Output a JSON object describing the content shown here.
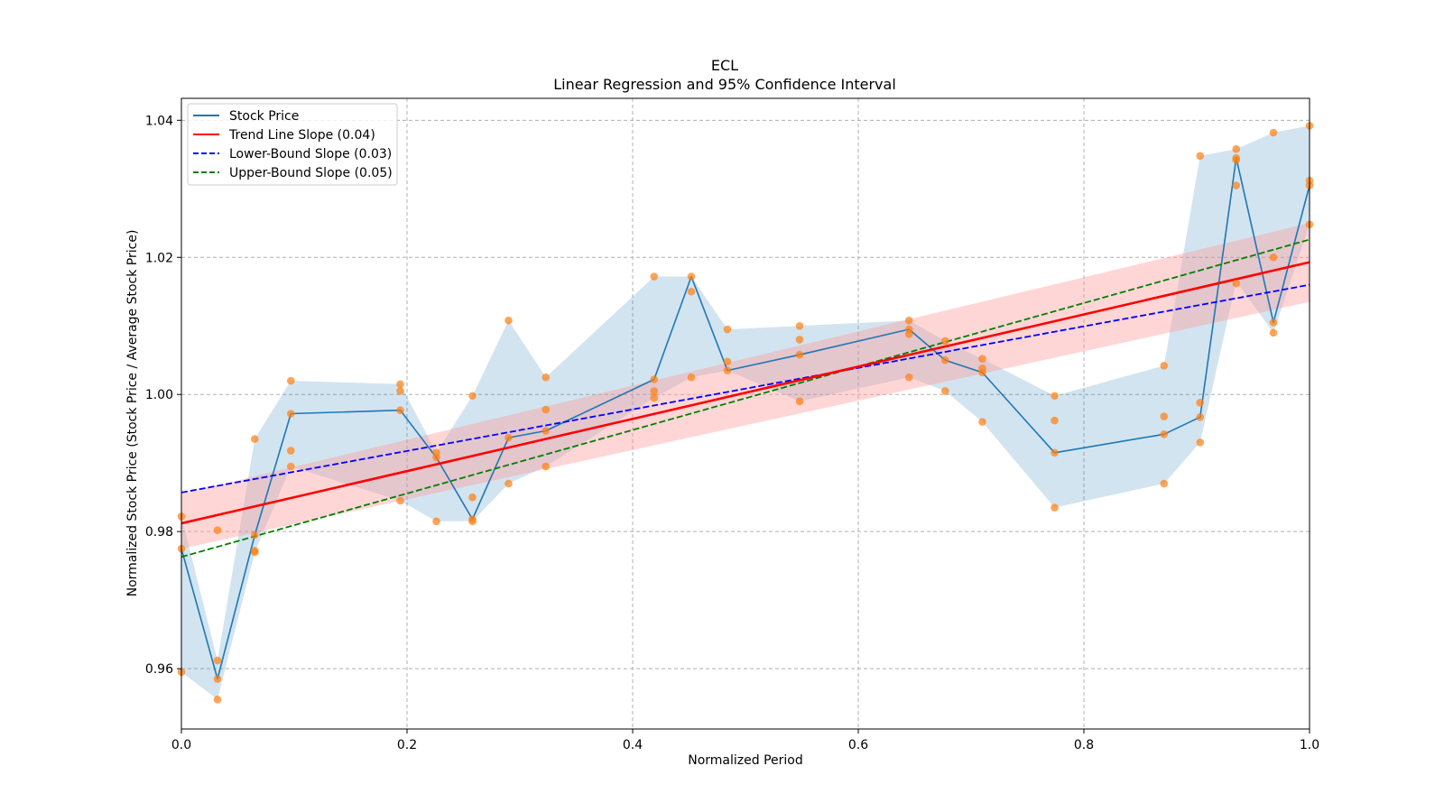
{
  "chart_data": {
    "type": "line",
    "title": "ECL",
    "subtitle": "Linear Regression and 95% Confidence Interval",
    "xlabel": "Normalized Period",
    "ylabel": "Normalized Stock Price (Stock Price / Average Stock Price)",
    "xlim": [
      0.0,
      1.0
    ],
    "ylim": [
      0.9512,
      1.0432
    ],
    "xticks": [
      0.0,
      0.2,
      0.4,
      0.6,
      0.8,
      1.0
    ],
    "xtick_labels": [
      "0.0",
      "0.2",
      "0.4",
      "0.6",
      "0.8",
      "1.0"
    ],
    "yticks": [
      0.96,
      0.98,
      1.0,
      1.02,
      1.04
    ],
    "ytick_labels": [
      "0.96",
      "0.98",
      "1.00",
      "1.02",
      "1.04"
    ],
    "grid": true,
    "legend_position": "top-left",
    "colors": {
      "stock": "#1f77b4",
      "band": "#1f77b4",
      "scatter": "#ff7f0e",
      "trend": "#ff0000",
      "trend_band": "#ff9999",
      "lower": "#0000ff",
      "upper": "#008000"
    },
    "legend": [
      {
        "label": "Stock Price",
        "color": "#1f77b4",
        "style": "solid"
      },
      {
        "label": "Trend Line Slope (0.04)",
        "color": "#ff0000",
        "style": "solid"
      },
      {
        "label": "Lower-Bound Slope (0.03)",
        "color": "#0000ff",
        "style": "dashed"
      },
      {
        "label": "Upper-Bound Slope (0.05)",
        "color": "#008000",
        "style": "dashed"
      }
    ],
    "series": [
      {
        "name": "Stock Price",
        "x": [
          0.0,
          0.032,
          0.065,
          0.097,
          0.194,
          0.226,
          0.258,
          0.29,
          0.323,
          0.419,
          0.452,
          0.484,
          0.548,
          0.645,
          0.677,
          0.71,
          0.774,
          0.871,
          0.903,
          0.935,
          0.968,
          1.0
        ],
        "y": [
          0.9775,
          0.9585,
          0.9795,
          0.9972,
          0.9977,
          0.9908,
          0.9818,
          0.9937,
          0.9947,
          1.0022,
          1.0172,
          1.0035,
          1.0058,
          1.0095,
          1.005,
          1.0032,
          0.9915,
          0.9942,
          0.9967,
          1.0345,
          1.0105,
          1.0305
        ]
      }
    ],
    "band": {
      "name": "Daily range",
      "x": [
        0.0,
        0.032,
        0.065,
        0.097,
        0.194,
        0.226,
        0.258,
        0.29,
        0.323,
        0.419,
        0.452,
        0.484,
        0.548,
        0.645,
        0.677,
        0.71,
        0.774,
        0.871,
        0.903,
        0.935,
        0.968,
        1.0
      ],
      "low": [
        0.9595,
        0.9555,
        0.977,
        0.9895,
        0.9845,
        0.9815,
        0.9815,
        0.987,
        0.9895,
        0.9995,
        1.0025,
        1.0035,
        0.999,
        1.0025,
        1.0005,
        0.996,
        0.9835,
        0.987,
        0.993,
        1.0165,
        1.009,
        1.0248
      ],
      "high": [
        0.9822,
        0.9612,
        0.9935,
        1.002,
        1.0015,
        0.9915,
        0.9998,
        1.0108,
        1.0025,
        1.0172,
        1.0172,
        1.0095,
        1.01,
        1.0108,
        1.0078,
        1.0052,
        0.9998,
        1.0042,
        1.0348,
        1.0358,
        1.0382,
        1.0392
      ]
    },
    "scatter": {
      "name": "Daily prices",
      "x": [
        0.0,
        0.0,
        0.0,
        0.032,
        0.032,
        0.032,
        0.032,
        0.065,
        0.065,
        0.065,
        0.065,
        0.097,
        0.097,
        0.097,
        0.097,
        0.194,
        0.194,
        0.194,
        0.194,
        0.226,
        0.226,
        0.226,
        0.258,
        0.258,
        0.258,
        0.258,
        0.29,
        0.29,
        0.29,
        0.323,
        0.323,
        0.323,
        0.323,
        0.419,
        0.419,
        0.419,
        0.419,
        0.452,
        0.452,
        0.452,
        0.484,
        0.484,
        0.484,
        0.548,
        0.548,
        0.548,
        0.548,
        0.645,
        0.645,
        0.645,
        0.645,
        0.677,
        0.677,
        0.677,
        0.71,
        0.71,
        0.71,
        0.71,
        0.774,
        0.774,
        0.774,
        0.774,
        0.871,
        0.871,
        0.871,
        0.871,
        0.903,
        0.903,
        0.903,
        0.903,
        0.935,
        0.935,
        0.935,
        0.935,
        0.935,
        0.968,
        0.968,
        0.968,
        0.968,
        1.0,
        1.0,
        1.0,
        1.0
      ],
      "y": [
        0.9822,
        0.9775,
        0.9595,
        0.9802,
        0.9612,
        0.9585,
        0.9555,
        0.9935,
        0.9795,
        0.977,
        0.9772,
        1.002,
        0.9972,
        0.9918,
        0.9895,
        1.0015,
        1.0005,
        0.9977,
        0.9845,
        0.9915,
        0.9908,
        0.9815,
        0.9998,
        0.985,
        0.9818,
        0.9815,
        1.0108,
        0.9937,
        0.987,
        1.0025,
        0.9978,
        0.9947,
        0.9895,
        1.0172,
        1.0022,
        1.0005,
        0.9995,
        1.0172,
        1.015,
        1.0025,
        1.0095,
        1.0048,
        1.0035,
        1.01,
        1.008,
        1.0058,
        0.999,
        1.0108,
        1.0095,
        1.0088,
        1.0025,
        1.0078,
        1.005,
        1.0005,
        1.0052,
        1.0038,
        1.0032,
        0.996,
        0.9998,
        0.9962,
        0.9915,
        0.9835,
        1.0042,
        0.9968,
        0.9942,
        0.987,
        1.0348,
        0.9988,
        0.9967,
        0.993,
        1.0358,
        1.0342,
        1.0305,
        1.0162,
        1.0345,
        1.0382,
        1.02,
        1.0105,
        1.009,
        1.0392,
        1.0312,
        1.0305,
        1.0248
      ]
    },
    "trend_line": {
      "name": "Trend Line Slope (0.04)",
      "x": [
        0.0,
        1.0
      ],
      "y": [
        0.9812,
        1.0193
      ]
    },
    "trend_band": {
      "x": [
        0.0,
        1.0
      ],
      "low": [
        0.9775,
        1.0135
      ],
      "high": [
        0.9855,
        1.025
      ]
    },
    "lower_line": {
      "name": "Lower-Bound Slope (0.03)",
      "x": [
        0.0,
        1.0
      ],
      "y": [
        0.9857,
        1.016
      ]
    },
    "upper_line": {
      "name": "Upper-Bound Slope (0.05)",
      "x": [
        0.0,
        1.0
      ],
      "y": [
        0.9763,
        1.0226
      ]
    }
  }
}
